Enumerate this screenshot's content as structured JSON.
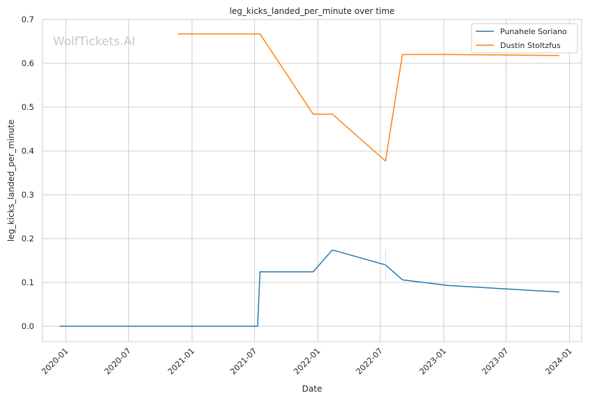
{
  "watermark": "WolfTickets.AI",
  "chart_data": {
    "type": "line",
    "title": "leg_kicks_landed_per_minute over time",
    "xlabel": "Date",
    "ylabel": "leg_kicks_landed_per_minute",
    "xlim": [
      "2019-10-25",
      "2024-02-05"
    ],
    "ylim": [
      -0.035,
      0.7
    ],
    "x_ticks": [
      "2020-01",
      "2020-07",
      "2021-01",
      "2021-07",
      "2022-01",
      "2022-07",
      "2023-01",
      "2023-07",
      "2024-01"
    ],
    "y_ticks": [
      "0.0",
      "0.1",
      "0.2",
      "0.3",
      "0.4",
      "0.5",
      "0.6",
      "0.7"
    ],
    "grid": true,
    "legend_position": "top-right",
    "series": [
      {
        "name": "Punahele Soriano",
        "color": "#1f77b4",
        "points": [
          {
            "x": "2019-12-14",
            "y": 0.0
          },
          {
            "x": "2021-07-10",
            "y": 0.0
          },
          {
            "x": "2021-07-17",
            "y": 0.124
          },
          {
            "x": "2021-12-18",
            "y": 0.124
          },
          {
            "x": "2022-02-12",
            "y": 0.174
          },
          {
            "x": "2022-07-16",
            "y": 0.14
          },
          {
            "x": "2022-09-03",
            "y": 0.106
          },
          {
            "x": "2023-01-14",
            "y": 0.093
          },
          {
            "x": "2023-12-02",
            "y": 0.078
          }
        ]
      },
      {
        "name": "Dustin Stoltzfus",
        "color": "#ff7f0e",
        "points": [
          {
            "x": "2020-11-21",
            "y": 0.667
          },
          {
            "x": "2021-07-17",
            "y": 0.667
          },
          {
            "x": "2021-12-18",
            "y": 0.484
          },
          {
            "x": "2022-02-12",
            "y": 0.484
          },
          {
            "x": "2022-07-16",
            "y": 0.377
          },
          {
            "x": "2022-09-03",
            "y": 0.62
          },
          {
            "x": "2023-01-14",
            "y": 0.62
          },
          {
            "x": "2023-12-02",
            "y": 0.618
          }
        ]
      }
    ]
  }
}
